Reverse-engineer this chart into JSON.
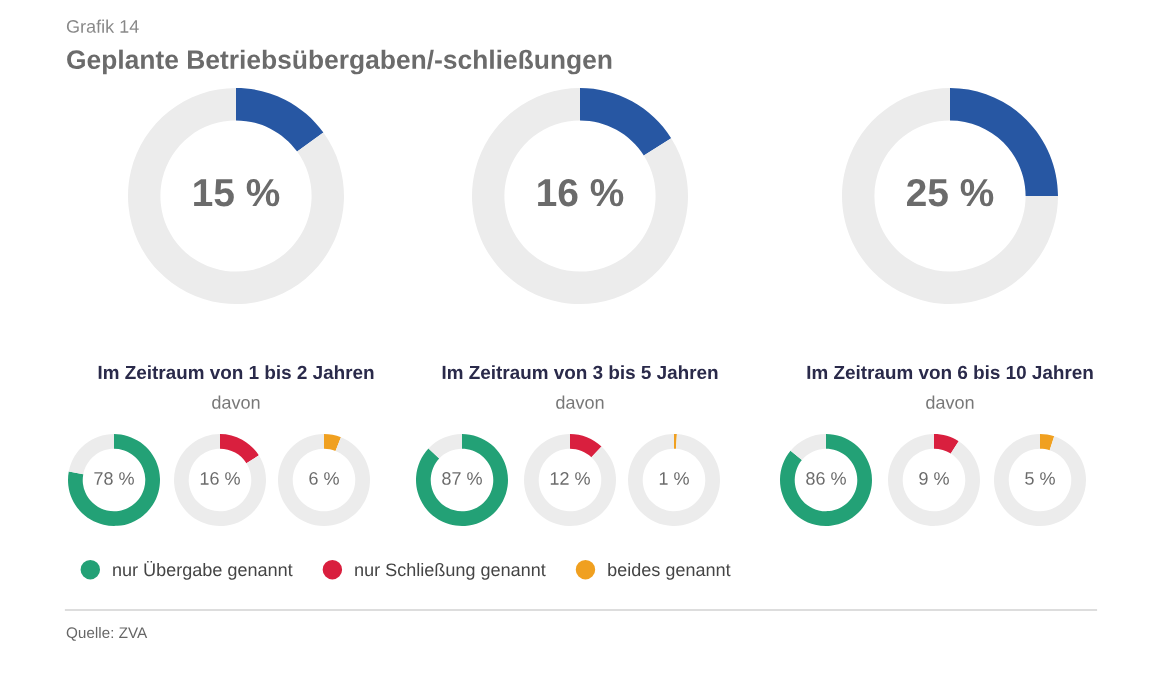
{
  "chart_data": [
    {
      "type": "donut",
      "title": "Geplante Betriebsübergaben/-schließungen",
      "annotations": [
        "Grafik 14",
        "Quelle: ZVA"
      ],
      "xlabel": "Im Zeitraum von 1 bis 2 Jahren",
      "subtitle": "davon",
      "categories": [
        null,
        null
      ],
      "values": [
        15,
        85
      ],
      "colors": [
        "#2757a3",
        "#ececec"
      ],
      "value_labels": [
        "15 %",
        null
      ]
    },
    {
      "type": "donut",
      "xlabel": "Im Zeitraum von 3 bis 5 Jahren",
      "subtitle": "davon",
      "categories": [
        null,
        null
      ],
      "values": [
        16,
        84
      ],
      "colors": [
        "#2757a3",
        "#ececec"
      ],
      "value_labels": [
        "16 %",
        null
      ]
    },
    {
      "type": "donut",
      "xlabel": "Im Zeitraum von 6 bis 10 Jahren",
      "subtitle": "davon",
      "categories": [
        null,
        null
      ],
      "values": [
        25,
        75
      ],
      "colors": [
        "#2757a3",
        "#ececec"
      ],
      "value_labels": [
        "25 %",
        null
      ]
    },
    {
      "type": "donut",
      "categories": [
        "nur Übergabe genannt",
        null
      ],
      "values": [
        78,
        22
      ],
      "colors": [
        "#23a176",
        "#ececec"
      ],
      "value_labels": [
        "78 %",
        null
      ],
      "legend": "bottom"
    },
    {
      "type": "donut",
      "categories": [
        "nur Schließung genannt",
        null
      ],
      "values": [
        16,
        84
      ],
      "colors": [
        "#d91f3e",
        "#ececec"
      ],
      "value_labels": [
        "16 %",
        null
      ],
      "legend": "bottom"
    },
    {
      "type": "donut",
      "categories": [
        "beides genannt",
        null
      ],
      "values": [
        6,
        94
      ],
      "colors": [
        "#f0a020",
        "#ececec"
      ],
      "value_labels": [
        "6 %",
        null
      ],
      "legend": "bottom"
    },
    {
      "type": "donut",
      "categories": [
        null,
        null
      ],
      "values": [
        87,
        13
      ],
      "colors": [
        "#23a176",
        "#ececec"
      ],
      "value_labels": [
        "87 %",
        null
      ]
    },
    {
      "type": "donut",
      "categories": [
        null,
        null
      ],
      "values": [
        12,
        88
      ],
      "colors": [
        "#d91f3e",
        "#ececec"
      ],
      "value_labels": [
        "12 %",
        null
      ]
    },
    {
      "type": "donut",
      "categories": [
        null,
        null
      ],
      "values": [
        1,
        99
      ],
      "colors": [
        "#f0a020",
        "#ececec"
      ],
      "value_labels": [
        "1 %",
        null
      ]
    },
    {
      "type": "donut",
      "categories": [
        null,
        null
      ],
      "values": [
        86,
        14
      ],
      "colors": [
        "#23a176",
        "#ececec"
      ],
      "value_labels": [
        "86 %",
        null
      ]
    },
    {
      "type": "donut",
      "categories": [
        null,
        null
      ],
      "values": [
        9,
        91
      ],
      "colors": [
        "#d91f3e",
        "#ececec"
      ],
      "value_labels": [
        "9 %",
        null
      ]
    },
    {
      "type": "donut",
      "categories": [
        null,
        null
      ],
      "values": [
        5,
        95
      ],
      "colors": [
        "#f0a020",
        "#ececec"
      ],
      "value_labels": [
        "5 %",
        null
      ]
    }
  ]
}
